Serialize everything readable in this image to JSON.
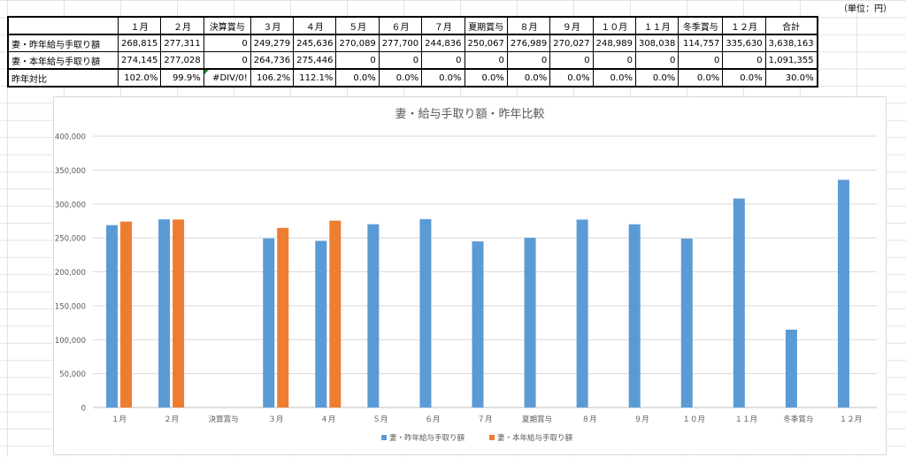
{
  "unit_note": "（単位：円）",
  "table": {
    "columns": [
      "",
      "１月",
      "２月",
      "決算賞与",
      "３月",
      "４月",
      "５月",
      "６月",
      "７月",
      "夏期賞与",
      "８月",
      "９月",
      "１０月",
      "１１月",
      "冬季賞与",
      "１２月",
      "合計"
    ],
    "rows": [
      {
        "label": "妻・昨年給与手取り額",
        "cells": [
          "268,815",
          "277,311",
          "0",
          "249,279",
          "245,636",
          "270,089",
          "277,700",
          "244,836",
          "250,067",
          "276,989",
          "270,027",
          "248,989",
          "308,038",
          "114,757",
          "335,630",
          "3,638,163"
        ]
      },
      {
        "label": "妻・本年給与手取り額",
        "cells": [
          "274,145",
          "277,028",
          "0",
          "264,736",
          "275,446",
          "0",
          "0",
          "0",
          "0",
          "0",
          "0",
          "0",
          "0",
          "0",
          "0",
          "1,091,355"
        ]
      },
      {
        "label": "昨年対比",
        "cells": [
          "102.0%",
          "99.9%",
          "#DIV/0!",
          "106.2%",
          "112.1%",
          "0.0%",
          "0.0%",
          "0.0%",
          "0.0%",
          "0.0%",
          "0.0%",
          "0.0%",
          "0.0%",
          "0.0%",
          "0.0%",
          "30.0%"
        ]
      }
    ]
  },
  "chart_data": {
    "type": "bar",
    "title": "妻・給与手取り額・昨年比較",
    "categories": [
      "１月",
      "２月",
      "決算賞与",
      "３月",
      "４月",
      "５月",
      "６月",
      "７月",
      "夏期賞与",
      "８月",
      "９月",
      "１０月",
      "１１月",
      "冬季賞与",
      "１２月"
    ],
    "series": [
      {
        "name": "妻・昨年給与手取り額",
        "color": "#5b9bd5",
        "values": [
          268815,
          277311,
          0,
          249279,
          245636,
          270089,
          277700,
          244836,
          250067,
          276989,
          270027,
          248989,
          308038,
          114757,
          335630
        ]
      },
      {
        "name": "妻・本年給与手取り額",
        "color": "#ed7d31",
        "values": [
          274145,
          277028,
          0,
          264736,
          275446,
          0,
          0,
          0,
          0,
          0,
          0,
          0,
          0,
          0,
          0
        ]
      }
    ],
    "ylim": [
      0,
      400000
    ],
    "yticks": [
      "0",
      "50,000",
      "100,000",
      "150,000",
      "200,000",
      "250,000",
      "300,000",
      "350,000",
      "400,000"
    ],
    "grid": true,
    "legend": "bottom"
  }
}
